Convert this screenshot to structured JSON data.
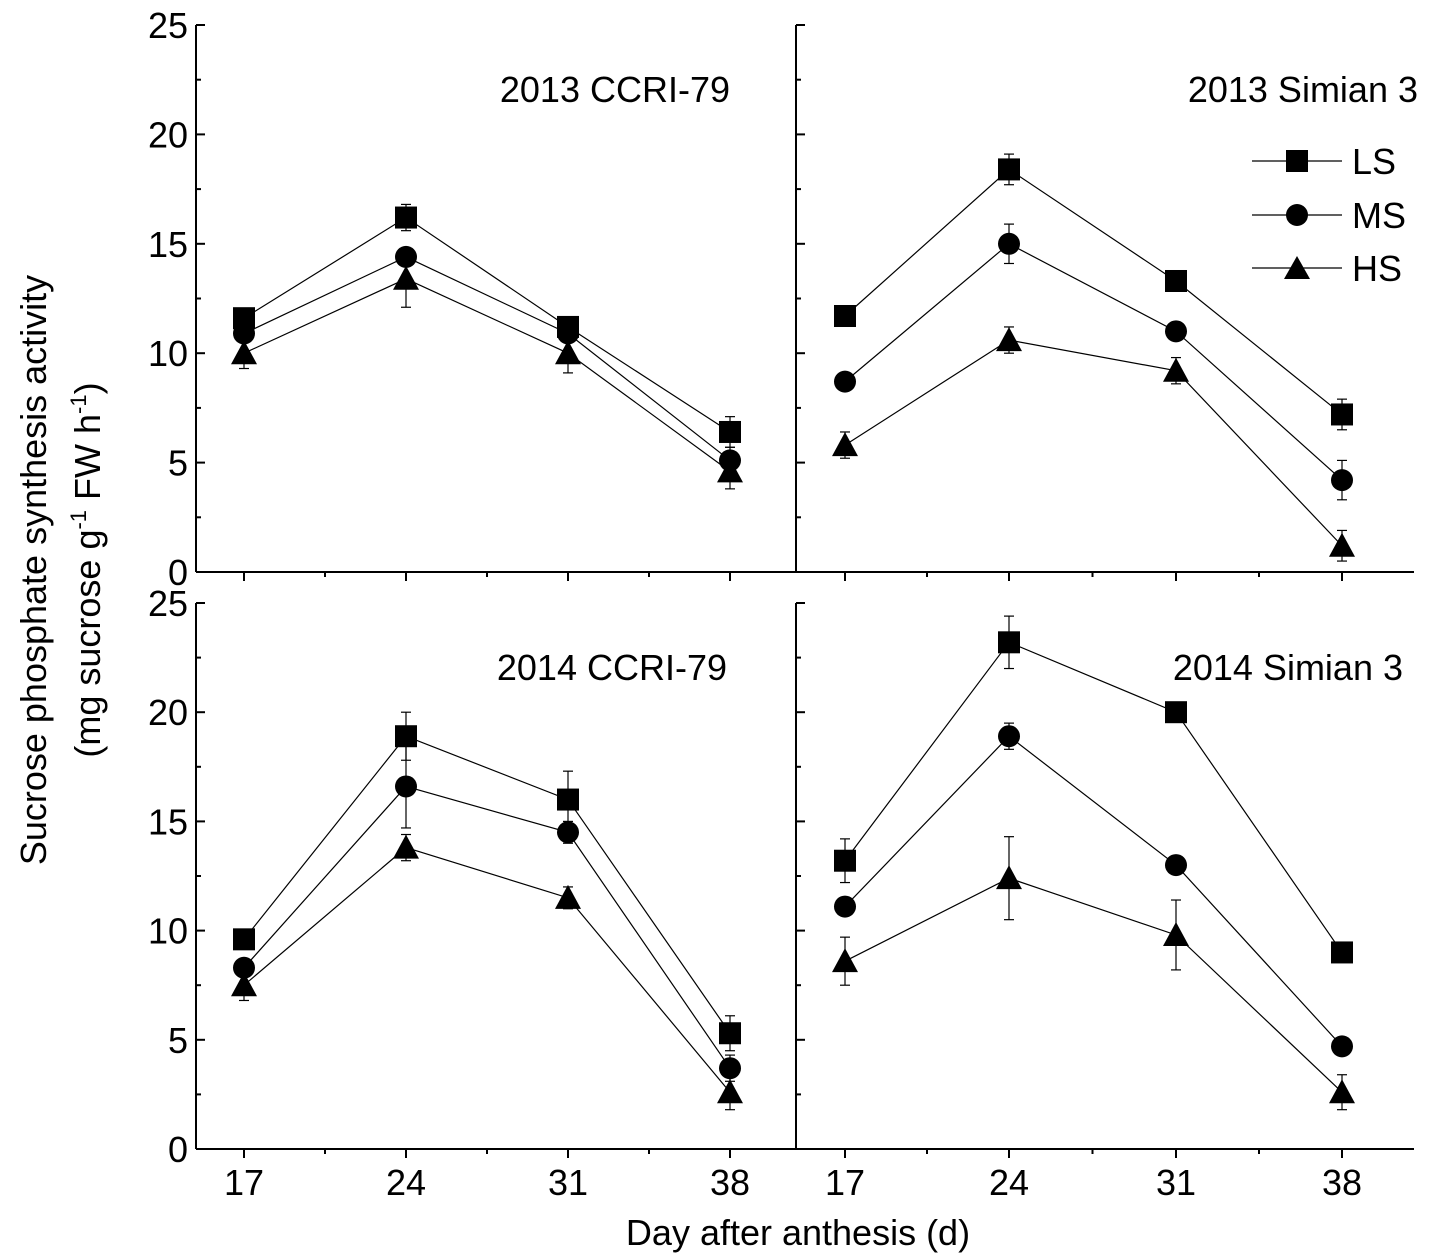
{
  "chart_data": {
    "type": "line",
    "ylabel_line1": "Sucrose phosphate synthesis activity",
    "ylabel_line2": {
      "a": "(mg sucrose g",
      "b": "-1",
      "c": " FW h",
      "d": "-1",
      "e": ")"
    },
    "xlabel": "Day after anthesis (d)",
    "x_ticks": [
      17,
      24,
      31,
      38
    ],
    "y_ticks": [
      0,
      5,
      10,
      15,
      20,
      25
    ],
    "ylim": [
      0,
      25
    ],
    "legend": {
      "placement": "top-right of top-right panel",
      "entries": [
        {
          "name": "LS",
          "marker": "square"
        },
        {
          "name": "MS",
          "marker": "circle"
        },
        {
          "name": "HS",
          "marker": "triangle"
        }
      ]
    },
    "panels": [
      {
        "title": "2013 CCRI-79",
        "series": [
          {
            "name": "LS",
            "marker": "square",
            "values": [
              11.6,
              16.2,
              11.2,
              6.4
            ],
            "errors": [
              0.2,
              0.6,
              0.3,
              0.7
            ]
          },
          {
            "name": "MS",
            "marker": "circle",
            "values": [
              10.9,
              14.4,
              10.9,
              5.1
            ],
            "errors": [
              0.3,
              0.3,
              0.3,
              0.6
            ]
          },
          {
            "name": "HS",
            "marker": "triangle",
            "values": [
              10.0,
              13.4,
              10.0,
              4.6
            ],
            "errors": [
              0.7,
              1.3,
              0.9,
              0.8
            ]
          }
        ]
      },
      {
        "title": "2013 Simian 3",
        "series": [
          {
            "name": "LS",
            "marker": "square",
            "values": [
              11.7,
              18.4,
              13.3,
              7.2
            ],
            "errors": [
              0.3,
              0.7,
              0.2,
              0.7
            ]
          },
          {
            "name": "MS",
            "marker": "circle",
            "values": [
              8.7,
              15.0,
              11.0,
              4.2
            ],
            "errors": [
              0.2,
              0.9,
              0.2,
              0.9
            ]
          },
          {
            "name": "HS",
            "marker": "triangle",
            "values": [
              5.8,
              10.6,
              9.2,
              1.2
            ],
            "errors": [
              0.6,
              0.6,
              0.6,
              0.7
            ]
          }
        ]
      },
      {
        "title": "2014 CCRI-79",
        "series": [
          {
            "name": "LS",
            "marker": "square",
            "values": [
              9.6,
              18.9,
              16.0,
              5.3
            ],
            "errors": [
              0.2,
              1.1,
              1.3,
              0.8
            ]
          },
          {
            "name": "MS",
            "marker": "circle",
            "values": [
              8.3,
              16.6,
              14.5,
              3.7
            ],
            "errors": [
              0.3,
              1.9,
              0.5,
              0.6
            ]
          },
          {
            "name": "HS",
            "marker": "triangle",
            "values": [
              7.5,
              13.8,
              11.5,
              2.6
            ],
            "errors": [
              0.7,
              0.6,
              0.5,
              0.8
            ]
          }
        ]
      },
      {
        "title": "2014 Simian 3",
        "series": [
          {
            "name": "LS",
            "marker": "square",
            "values": [
              13.2,
              23.2,
              20.0,
              9.0
            ],
            "errors": [
              1.0,
              1.2,
              0.2,
              0.2
            ]
          },
          {
            "name": "MS",
            "marker": "circle",
            "values": [
              11.1,
              18.9,
              13.0,
              4.7
            ],
            "errors": [
              0.2,
              0.6,
              0.2,
              0.2
            ]
          },
          {
            "name": "HS",
            "marker": "triangle",
            "values": [
              8.6,
              12.4,
              9.8,
              2.6
            ],
            "errors": [
              1.1,
              1.9,
              1.6,
              0.8
            ]
          }
        ]
      }
    ]
  }
}
